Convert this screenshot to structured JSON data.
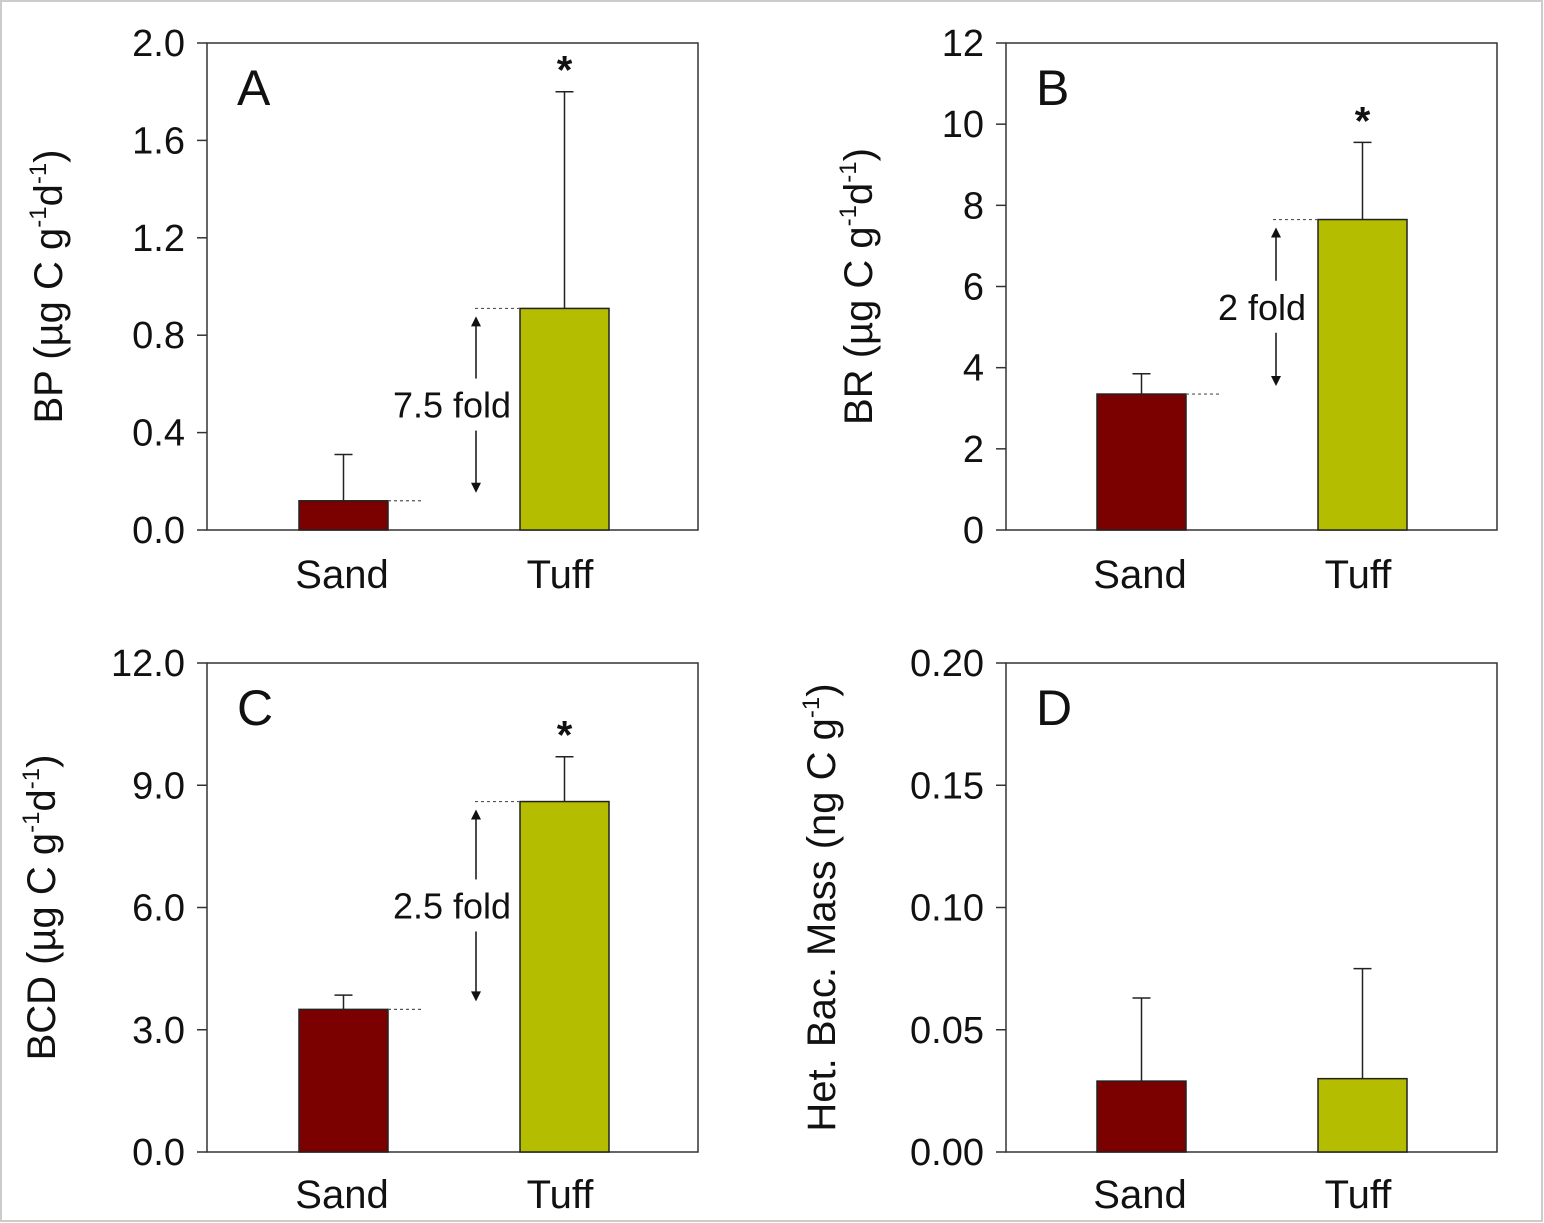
{
  "chart_data": [
    {
      "type": "bar",
      "panel": "A",
      "categories": [
        "Sand",
        "Tuff"
      ],
      "values": [
        0.12,
        0.91
      ],
      "errors": [
        0.19,
        0.89
      ],
      "colors": [
        "#7b0000",
        "#b4bd00"
      ],
      "ylim": [
        0.0,
        2.0
      ],
      "yticks": [
        "0.0",
        "0.4",
        "0.8",
        "1.2",
        "1.6",
        "2.0"
      ],
      "ylabel": {
        "main": "BP (µg C g",
        "sup1": "-1",
        "mid": "d",
        "sup2": "-1",
        "end": ")"
      },
      "annotation": "7.5 fold",
      "star": "*"
    },
    {
      "type": "bar",
      "panel": "B",
      "categories": [
        "Sand",
        "Tuff"
      ],
      "values": [
        3.35,
        7.65
      ],
      "errors": [
        0.5,
        1.9
      ],
      "colors": [
        "#7b0000",
        "#b4bd00"
      ],
      "ylim": [
        0,
        12
      ],
      "yticks": [
        "0",
        "2",
        "4",
        "6",
        "8",
        "10",
        "12"
      ],
      "ylabel": {
        "main": "BR (µg C g",
        "sup1": "-1",
        "mid": "d",
        "sup2": "-1",
        "end": ")"
      },
      "annotation": "2 fold",
      "star": "*"
    },
    {
      "type": "bar",
      "panel": "C",
      "categories": [
        "Sand",
        "Tuff"
      ],
      "values": [
        3.5,
        8.6
      ],
      "errors": [
        0.35,
        1.1
      ],
      "colors": [
        "#7b0000",
        "#b4bd00"
      ],
      "ylim": [
        0.0,
        12.0
      ],
      "yticks": [
        "0.0",
        "3.0",
        "6.0",
        "9.0",
        "12.0"
      ],
      "ylabel": {
        "main": "BCD (µg C g",
        "sup1": "-1",
        "mid": "d",
        "sup2": "-1",
        "end": ")"
      },
      "annotation": "2.5 fold",
      "star": "*"
    },
    {
      "type": "bar",
      "panel": "D",
      "categories": [
        "Sand",
        "Tuff"
      ],
      "values": [
        0.029,
        0.03
      ],
      "errors": [
        0.034,
        0.045
      ],
      "colors": [
        "#7b0000",
        "#b4bd00"
      ],
      "ylim": [
        0.0,
        0.2
      ],
      "yticks": [
        "0.00",
        "0.05",
        "0.10",
        "0.15",
        "0.20"
      ],
      "ylabel": {
        "main": "Het. Bac. Mass (ng C g",
        "sup1": "-1",
        "mid": "",
        "sup2": "",
        "end": ")"
      },
      "annotation": "",
      "star": ""
    }
  ]
}
